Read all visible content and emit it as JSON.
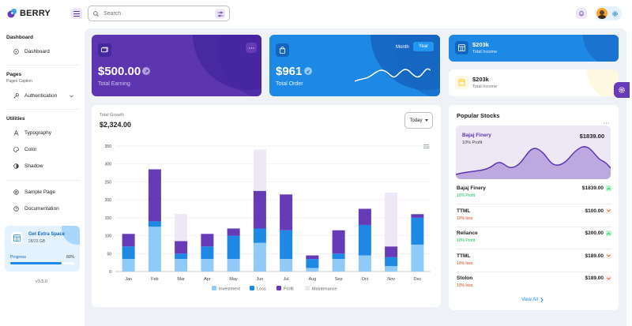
{
  "brand": {
    "name": "BERRY"
  },
  "search": {
    "placeholder": "Search"
  },
  "sidebar": {
    "dashboard_title": "Dashboard",
    "dashboard_item": "Dashboard",
    "pages_title": "Pages",
    "pages_caption": "Pages Caption",
    "authentication": "Authentication",
    "utilities_title": "Utilities",
    "typography": "Typography",
    "color": "Color",
    "shadow": "Shadow",
    "sample_page": "Sample Page",
    "documentation": "Documentation",
    "storage": {
      "title": "Get Extra Space",
      "size": "28/23 GB",
      "progress_label": "Progress",
      "progress_value": "80%",
      "progress_fraction": 0.8
    },
    "version": "v3.5.0"
  },
  "cards": {
    "earning": {
      "value": "$500.00",
      "label": "Total Earning"
    },
    "order": {
      "value": "$961",
      "label": "Total Order",
      "tab_month": "Month",
      "tab_year": "Year",
      "active_tab": "Year"
    },
    "income_dark": {
      "value": "$203k",
      "label": "Total Income"
    },
    "income_light": {
      "value": "$203k",
      "label": "Total Income"
    }
  },
  "growth": {
    "subtitle": "Total Growth",
    "value": "$2,324.00",
    "period": "Today"
  },
  "chart_data": {
    "type": "bar",
    "stacked": true,
    "categories": [
      "Jan",
      "Feb",
      "Mar",
      "Apr",
      "May",
      "Jun",
      "Jul",
      "Aug",
      "Sep",
      "Oct",
      "Nov",
      "Dec"
    ],
    "series": [
      {
        "name": "Investment",
        "color": "#90caf9",
        "values": [
          35,
          125,
          35,
          35,
          35,
          80,
          35,
          10,
          35,
          45,
          15,
          75
        ]
      },
      {
        "name": "Loss",
        "color": "#1e88e5",
        "values": [
          35,
          15,
          15,
          35,
          65,
          40,
          80,
          25,
          15,
          85,
          25,
          75
        ]
      },
      {
        "name": "Profit",
        "color": "#673ab7",
        "values": [
          35,
          145,
          35,
          35,
          20,
          105,
          100,
          10,
          65,
          45,
          30,
          10
        ]
      },
      {
        "name": "Maintenance",
        "color": "#ede7f6",
        "values": [
          0,
          0,
          75,
          0,
          0,
          115,
          0,
          0,
          0,
          0,
          150,
          0
        ]
      }
    ],
    "yticks": [
      0,
      50,
      100,
      150,
      200,
      250,
      300,
      350
    ],
    "ylim": [
      0,
      350
    ],
    "legend_position": "bottom",
    "grid": true
  },
  "stocks": {
    "title": "Popular Stocks",
    "featured": {
      "name": "Bajaj Finery",
      "change": "10% Profit",
      "price": "$1839.00"
    },
    "items": [
      {
        "name": "Bajaj Finery",
        "change": "10% Profit",
        "price": "$1839.00",
        "trend": "up"
      },
      {
        "name": "TTML",
        "change": "10% loss",
        "price": "$100.00",
        "trend": "down"
      },
      {
        "name": "Reliance",
        "change": "10% Profit",
        "price": "$200.00",
        "trend": "up"
      },
      {
        "name": "TTML",
        "change": "10% loss",
        "price": "$189.00",
        "trend": "down"
      },
      {
        "name": "Stolon",
        "change": "10% loss",
        "price": "$189.00",
        "trend": "down"
      }
    ],
    "view_all": "View All"
  },
  "colors": {
    "purple": "#5e35b1",
    "blue": "#1e88e5",
    "profit": "#00c853",
    "loss": "#d84315"
  }
}
